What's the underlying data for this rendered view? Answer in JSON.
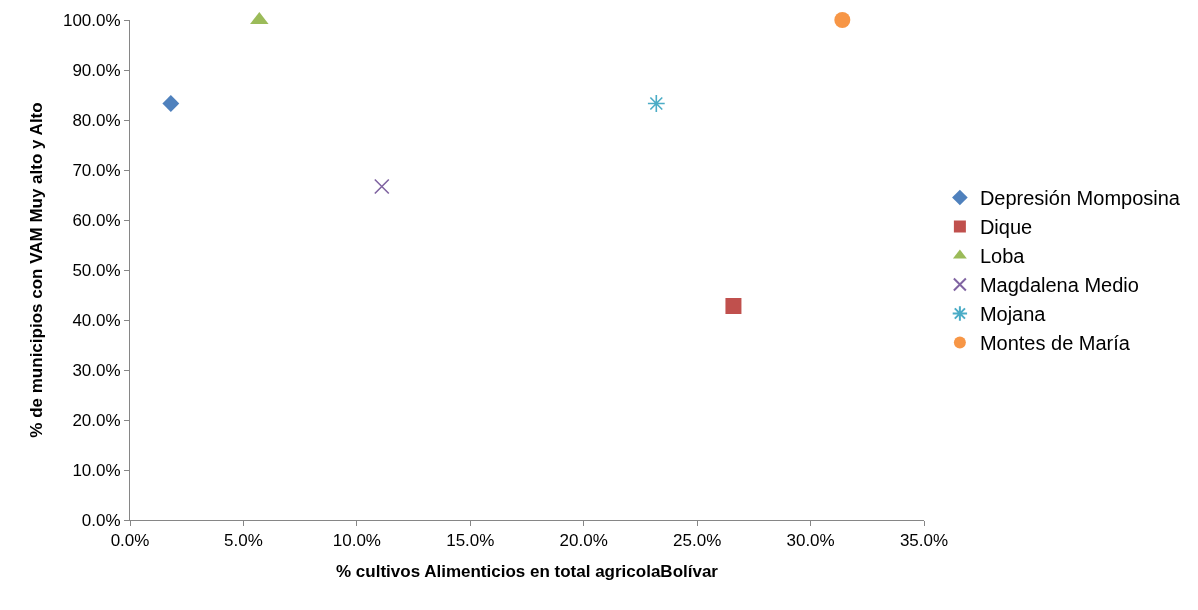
{
  "chart_data": {
    "type": "scatter",
    "xlabel": "% cultivos Alimenticios en total agricolaBolívar",
    "ylabel": "% de municipios con VAM Muy alto y Alto",
    "series": [
      {
        "name": "Depresión Momposina",
        "color": "#4f81bd",
        "marker": "diamond",
        "x": [
          1.8
        ],
        "values": [
          83.3
        ]
      },
      {
        "name": "Dique",
        "color": "#c0504d",
        "marker": "square",
        "x": [
          26.6
        ],
        "values": [
          42.8
        ]
      },
      {
        "name": "Loba",
        "color": "#9bbb59",
        "marker": "triangle",
        "x": [
          5.7
        ],
        "values": [
          100.0
        ]
      },
      {
        "name": "Magdalena Medio",
        "color": "#8064a2",
        "marker": "cross",
        "x": [
          11.1
        ],
        "values": [
          66.7
        ]
      },
      {
        "name": "Mojana",
        "color": "#4bacc6",
        "marker": "cross",
        "x": [
          23.2
        ],
        "values": [
          83.3
        ]
      },
      {
        "name": "Montes de María",
        "color": "#f79646",
        "marker": "circle",
        "x": [
          31.4
        ],
        "values": [
          100.0
        ]
      }
    ],
    "xlim": [
      0,
      35
    ],
    "ylim": [
      0,
      100
    ],
    "xticks": [
      {
        "value": 0,
        "label": "0.0%"
      },
      {
        "value": 5,
        "label": "5.0%"
      },
      {
        "value": 10,
        "label": "10.0%"
      },
      {
        "value": 15,
        "label": "15.0%"
      },
      {
        "value": 20,
        "label": "20.0%"
      },
      {
        "value": 25,
        "label": "25.0%"
      },
      {
        "value": 30,
        "label": "30.0%"
      },
      {
        "value": 35,
        "label": "35.0%"
      }
    ],
    "yticks": [
      {
        "value": 0,
        "label": "0.0%"
      },
      {
        "value": 10,
        "label": "10.0%"
      },
      {
        "value": 20,
        "label": "20.0%"
      },
      {
        "value": 30,
        "label": "30.0%"
      },
      {
        "value": 40,
        "label": "40.0%"
      },
      {
        "value": 50,
        "label": "50.0%"
      },
      {
        "value": 60,
        "label": "60.0%"
      },
      {
        "value": 70,
        "label": "70.0%"
      },
      {
        "value": 80,
        "label": "80.0%"
      },
      {
        "value": 90,
        "label": "90.0%"
      },
      {
        "value": 100,
        "label": "100.0%"
      }
    ],
    "legend": "right"
  }
}
